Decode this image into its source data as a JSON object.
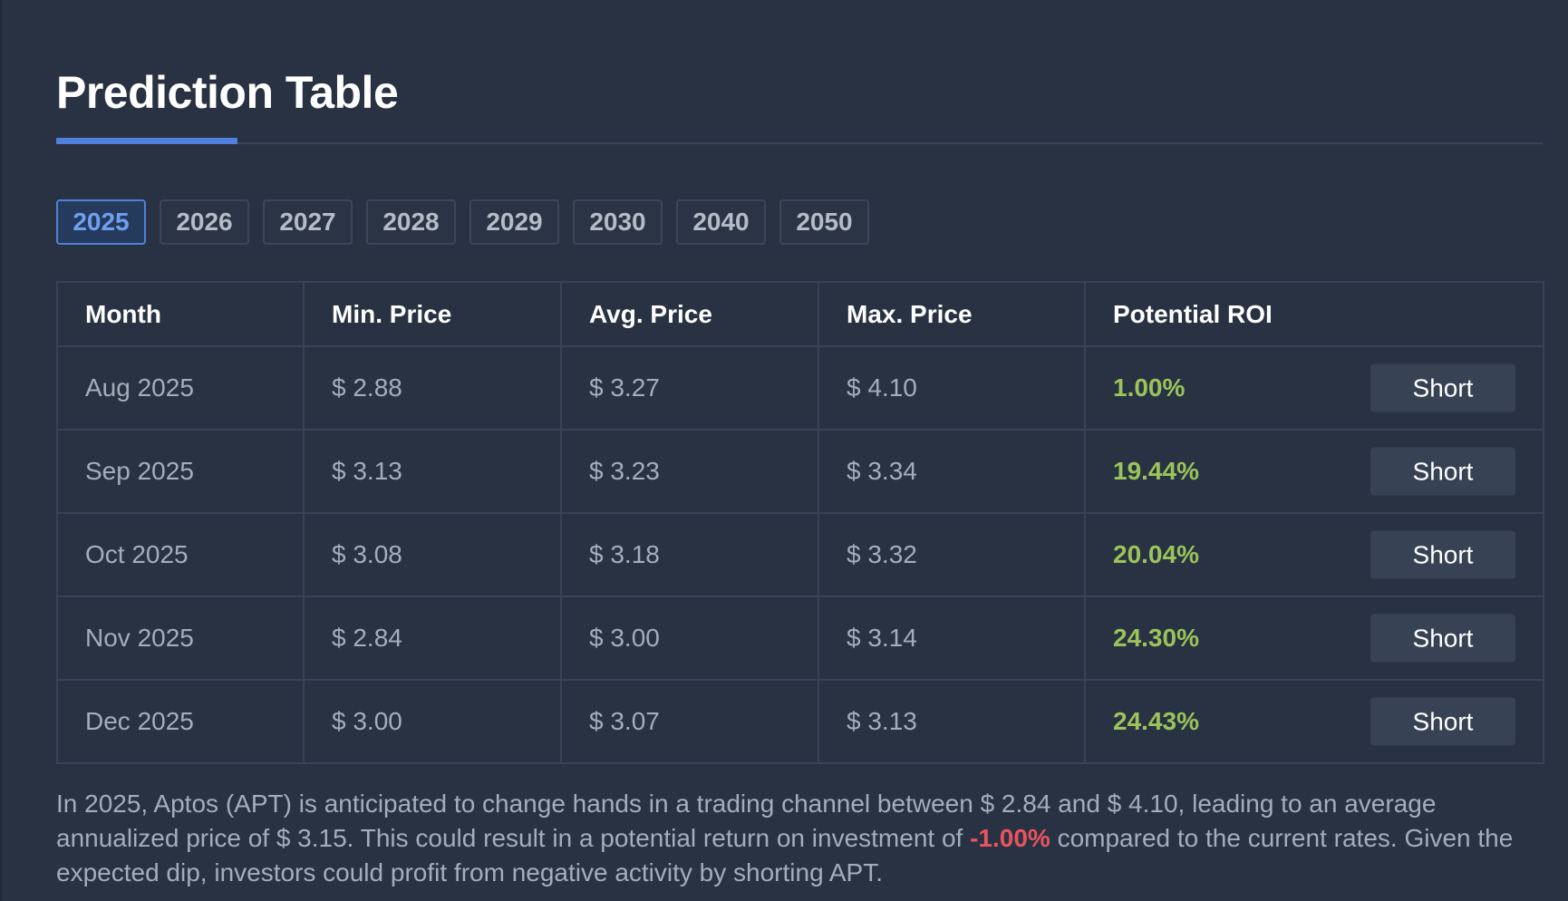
{
  "title": "Prediction Table",
  "years": [
    "2025",
    "2026",
    "2027",
    "2028",
    "2029",
    "2030",
    "2040",
    "2050"
  ],
  "active_year": "2025",
  "columns": [
    "Month",
    "Min. Price",
    "Avg. Price",
    "Max. Price",
    "Potential ROI"
  ],
  "rows": [
    {
      "month": "Aug 2025",
      "min": "$ 2.88",
      "avg": "$ 3.27",
      "max": "$ 4.10",
      "roi": "1.00%",
      "action": "Short"
    },
    {
      "month": "Sep 2025",
      "min": "$ 3.13",
      "avg": "$ 3.23",
      "max": "$ 3.34",
      "roi": "19.44%",
      "action": "Short"
    },
    {
      "month": "Oct 2025",
      "min": "$ 3.08",
      "avg": "$ 3.18",
      "max": "$ 3.32",
      "roi": "20.04%",
      "action": "Short"
    },
    {
      "month": "Nov 2025",
      "min": "$ 2.84",
      "avg": "$ 3.00",
      "max": "$ 3.14",
      "roi": "24.30%",
      "action": "Short"
    },
    {
      "month": "Dec 2025",
      "min": "$ 3.00",
      "avg": "$ 3.07",
      "max": "$ 3.13",
      "roi": "24.43%",
      "action": "Short"
    }
  ],
  "summary": {
    "before": "In 2025, Aptos (APT) is anticipated to change hands in a trading channel between $ 2.84 and $ 4.10, leading to an average annualized price of $ 3.15. This could result in a potential return on investment of ",
    "roi": "-1.00%",
    "after": " compared to the current rates. Given the expected dip, investors could profit from negative activity by shorting APT."
  },
  "colors": {
    "background": "#283242",
    "accent": "#4f80db",
    "positive": "#9bc35a",
    "negative": "#e8545e"
  }
}
